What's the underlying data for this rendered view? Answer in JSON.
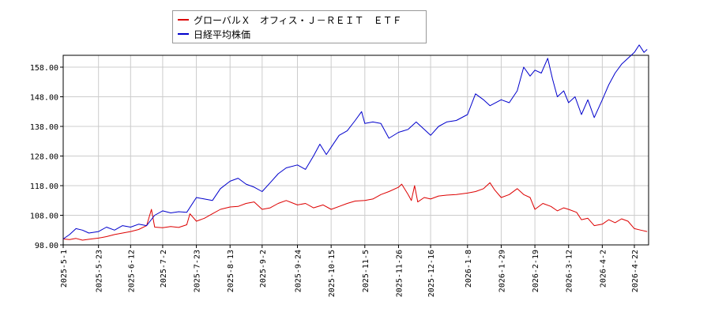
{
  "chart_data": {
    "type": "line",
    "title": "",
    "xlabel": "",
    "ylabel": "",
    "ylim": [
      98.0,
      162.0
    ],
    "y_ticks": [
      "98.00",
      "108.00",
      "118.00",
      "128.00",
      "138.00",
      "148.00",
      "158.00"
    ],
    "x_ticks": [
      "2025-5-1",
      "2025-5-23",
      "2025-6-12",
      "2025-7-2",
      "2025-7-23",
      "2025-8-13",
      "2025-9-2",
      "2025-9-24",
      "2025-10-15",
      "2025-11-5",
      "2025-11-26",
      "2025-12-16",
      "2026-1-8",
      "2026-1-29",
      "2026-2-19",
      "2026-3-12",
      "2026-4-2",
      "2026-4-22"
    ],
    "grid": true,
    "legend_position": "top-left",
    "series": [
      {
        "name": "グローバルＸ　オフィス・Ｊ－ＲＥＩＴ　ＥＴＦ",
        "color": "#dd0000",
        "points": [
          [
            "2025-5-1",
            100.0
          ],
          [
            "2025-5-5",
            99.8
          ],
          [
            "2025-5-9",
            100.2
          ],
          [
            "2025-5-13",
            99.6
          ],
          [
            "2025-5-17",
            99.9
          ],
          [
            "2025-5-23",
            100.3
          ],
          [
            "2025-5-28",
            100.8
          ],
          [
            "2025-6-2",
            101.5
          ],
          [
            "2025-6-7",
            102.0
          ],
          [
            "2025-6-12",
            102.5
          ],
          [
            "2025-6-17",
            103.2
          ],
          [
            "2025-6-22",
            104.5
          ],
          [
            "2025-6-25",
            110.0
          ],
          [
            "2025-6-27",
            104.0
          ],
          [
            "2025-7-2",
            103.8
          ],
          [
            "2025-7-7",
            104.2
          ],
          [
            "2025-7-12",
            103.9
          ],
          [
            "2025-7-17",
            104.8
          ],
          [
            "2025-7-19",
            108.5
          ],
          [
            "2025-7-23",
            106.0
          ],
          [
            "2025-7-28",
            107.0
          ],
          [
            "2025-8-2",
            108.5
          ],
          [
            "2025-8-7",
            110.0
          ],
          [
            "2025-8-13",
            110.8
          ],
          [
            "2025-8-18",
            111.0
          ],
          [
            "2025-8-23",
            112.0
          ],
          [
            "2025-8-28",
            112.5
          ],
          [
            "2025-9-2",
            110.0
          ],
          [
            "2025-9-7",
            110.5
          ],
          [
            "2025-9-12",
            112.0
          ],
          [
            "2025-9-17",
            113.0
          ],
          [
            "2025-9-24",
            111.5
          ],
          [
            "2025-9-29",
            112.0
          ],
          [
            "2025-10-4",
            110.5
          ],
          [
            "2025-10-10",
            111.5
          ],
          [
            "2025-10-15",
            110.0
          ],
          [
            "2025-10-20",
            111.0
          ],
          [
            "2025-10-25",
            112.0
          ],
          [
            "2025-10-30",
            112.8
          ],
          [
            "2025-11-5",
            113.0
          ],
          [
            "2025-11-10",
            113.5
          ],
          [
            "2025-11-15",
            115.0
          ],
          [
            "2025-11-20",
            116.0
          ],
          [
            "2025-11-26",
            117.5
          ],
          [
            "2025-11-28",
            118.5
          ],
          [
            "2025-12-2",
            115.0
          ],
          [
            "2025-12-4",
            113.0
          ],
          [
            "2025-12-6",
            118.0
          ],
          [
            "2025-12-8",
            112.5
          ],
          [
            "2025-12-12",
            114.0
          ],
          [
            "2025-12-16",
            113.5
          ],
          [
            "2025-12-21",
            114.5
          ],
          [
            "2025-12-26",
            114.8
          ],
          [
            "2026-1-1",
            115.0
          ],
          [
            "2026-1-8",
            115.5
          ],
          [
            "2026-1-13",
            116.0
          ],
          [
            "2026-1-18",
            117.0
          ],
          [
            "2026-1-22",
            119.0
          ],
          [
            "2026-1-25",
            116.5
          ],
          [
            "2026-1-29",
            114.0
          ],
          [
            "2026-2-3",
            115.0
          ],
          [
            "2026-2-8",
            117.0
          ],
          [
            "2026-2-12",
            115.0
          ],
          [
            "2026-2-16",
            114.0
          ],
          [
            "2026-2-19",
            110.0
          ],
          [
            "2026-2-24",
            112.0
          ],
          [
            "2026-3-1",
            111.0
          ],
          [
            "2026-3-5",
            109.5
          ],
          [
            "2026-3-9",
            110.5
          ],
          [
            "2026-3-12",
            110.0
          ],
          [
            "2026-3-17",
            109.0
          ],
          [
            "2026-3-20",
            106.5
          ],
          [
            "2026-3-24",
            107.0
          ],
          [
            "2026-3-28",
            104.5
          ],
          [
            "2026-4-2",
            105.0
          ],
          [
            "2026-4-6",
            106.5
          ],
          [
            "2026-4-10",
            105.5
          ],
          [
            "2026-4-14",
            106.8
          ],
          [
            "2026-4-18",
            106.0
          ],
          [
            "2026-4-22",
            103.5
          ],
          [
            "2026-4-26",
            103.0
          ],
          [
            "2026-4-30",
            102.5
          ]
        ]
      },
      {
        "name": "日経平均株価",
        "color": "#0000cc",
        "points": [
          [
            "2025-5-1",
            100.0
          ],
          [
            "2025-5-5",
            101.5
          ],
          [
            "2025-5-9",
            103.5
          ],
          [
            "2025-5-13",
            103.0
          ],
          [
            "2025-5-17",
            102.0
          ],
          [
            "2025-5-23",
            102.5
          ],
          [
            "2025-5-28",
            104.0
          ],
          [
            "2025-6-2",
            103.0
          ],
          [
            "2025-6-7",
            104.5
          ],
          [
            "2025-6-12",
            104.0
          ],
          [
            "2025-6-17",
            105.0
          ],
          [
            "2025-6-22",
            104.5
          ],
          [
            "2025-6-27",
            108.0
          ],
          [
            "2025-7-2",
            109.5
          ],
          [
            "2025-7-7",
            108.8
          ],
          [
            "2025-7-12",
            109.2
          ],
          [
            "2025-7-17",
            109.0
          ],
          [
            "2025-7-23",
            114.0
          ],
          [
            "2025-7-28",
            113.5
          ],
          [
            "2025-8-2",
            113.0
          ],
          [
            "2025-8-7",
            117.0
          ],
          [
            "2025-8-13",
            119.5
          ],
          [
            "2025-8-18",
            120.5
          ],
          [
            "2025-8-23",
            118.5
          ],
          [
            "2025-8-28",
            117.5
          ],
          [
            "2025-9-2",
            116.0
          ],
          [
            "2025-9-7",
            119.0
          ],
          [
            "2025-9-12",
            122.0
          ],
          [
            "2025-9-17",
            124.0
          ],
          [
            "2025-9-24",
            125.0
          ],
          [
            "2025-9-29",
            123.5
          ],
          [
            "2025-10-4",
            128.0
          ],
          [
            "2025-10-8",
            132.0
          ],
          [
            "2025-10-12",
            128.5
          ],
          [
            "2025-10-15",
            131.0
          ],
          [
            "2025-10-20",
            135.0
          ],
          [
            "2025-10-25",
            136.5
          ],
          [
            "2025-10-30",
            140.0
          ],
          [
            "2025-11-3",
            143.0
          ],
          [
            "2025-11-5",
            139.0
          ],
          [
            "2025-11-10",
            139.5
          ],
          [
            "2025-11-15",
            139.0
          ],
          [
            "2025-11-20",
            134.0
          ],
          [
            "2025-11-26",
            136.0
          ],
          [
            "2025-12-2",
            137.0
          ],
          [
            "2025-12-7",
            139.5
          ],
          [
            "2025-12-12",
            137.0
          ],
          [
            "2025-12-16",
            135.0
          ],
          [
            "2025-12-21",
            138.0
          ],
          [
            "2025-12-26",
            139.5
          ],
          [
            "2026-1-1",
            140.0
          ],
          [
            "2026-1-8",
            142.0
          ],
          [
            "2026-1-13",
            149.0
          ],
          [
            "2026-1-18",
            147.0
          ],
          [
            "2026-1-22",
            145.0
          ],
          [
            "2026-1-29",
            147.0
          ],
          [
            "2026-2-3",
            146.0
          ],
          [
            "2026-2-8",
            150.0
          ],
          [
            "2026-2-12",
            158.0
          ],
          [
            "2026-2-16",
            155.0
          ],
          [
            "2026-2-19",
            157.0
          ],
          [
            "2026-2-23",
            156.0
          ],
          [
            "2026-2-27",
            161.0
          ],
          [
            "2026-3-2",
            154.0
          ],
          [
            "2026-3-5",
            148.0
          ],
          [
            "2026-3-9",
            150.0
          ],
          [
            "2026-3-12",
            146.0
          ],
          [
            "2026-3-16",
            148.0
          ],
          [
            "2026-3-20",
            142.0
          ],
          [
            "2026-3-24",
            147.0
          ],
          [
            "2026-3-28",
            141.0
          ],
          [
            "2026-4-2",
            147.0
          ],
          [
            "2026-4-6",
            152.0
          ],
          [
            "2026-4-10",
            156.0
          ],
          [
            "2026-4-14",
            159.0
          ],
          [
            "2026-4-18",
            161.0
          ],
          [
            "2026-4-22",
            163.0
          ],
          [
            "2026-4-25",
            165.5
          ],
          [
            "2026-4-28",
            163.0
          ],
          [
            "2026-4-30",
            164.0
          ]
        ]
      }
    ]
  }
}
